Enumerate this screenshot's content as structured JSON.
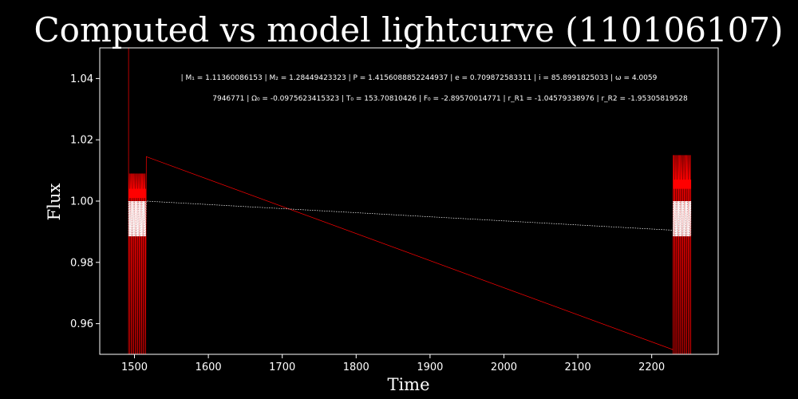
{
  "chart_data": {
    "type": "line",
    "title": "Computed vs model lightcurve (110106107)",
    "xlabel": "Time",
    "ylabel": "Flux",
    "xlim": [
      1453,
      2290
    ],
    "ylim": [
      0.95,
      1.05
    ],
    "xticks": [
      1500,
      1600,
      1700,
      1800,
      1900,
      2000,
      2100,
      2200
    ],
    "yticks": [
      0.96,
      0.98,
      1.0,
      1.02,
      1.04
    ],
    "ytick_labels": [
      "0.96",
      "0.98",
      "1.00",
      "1.02",
      "1.04"
    ],
    "grid": false,
    "legend": "none",
    "background": "#000000",
    "annotations": [
      "| M₁ = 1.11360086153 | M₂ = 1.28449423323 | P = 1.4156088852244937 | e = 0.709872583311 | i = 85.8991825033 | ω = 4.0059",
      "7946771 | Ω₀ = -0.0975623415323 | T₀ = 153.70810426 | F₀ = -2.89570014771 | r_R1 = -1.04579338976 | r_R2 = -1.95305819528"
    ],
    "series": [
      {
        "color": "#ff0000",
        "segments": [
          {
            "x_start": 1492,
            "x_end": 1515,
            "n": 40,
            "base": 1.003,
            "spike_low": 0.95,
            "spike_high": 1.009,
            "first_spike_high": 1.05
          },
          {
            "x_start": 2229,
            "x_end": 2253,
            "n": 40,
            "base": 1.006,
            "spike_low": 0.95,
            "spike_high": 1.015,
            "last_spike_high": 1.026
          }
        ],
        "connector": {
          "x": [
            1516,
            2229
          ],
          "y": [
            1.0145,
            0.9515
          ]
        }
      },
      {
        "color": "#ffffff",
        "style": "dotted",
        "segments": [
          {
            "x_start": 1492,
            "x_end": 1515,
            "n": 40,
            "low": 0.9885,
            "high": 1.0
          },
          {
            "x_start": 2229,
            "x_end": 2253,
            "n": 40,
            "low": 0.9885,
            "high": 1.0
          }
        ],
        "connector": {
          "x": [
            1516,
            2229
          ],
          "y": [
            1.0,
            0.9905
          ]
        }
      }
    ]
  }
}
